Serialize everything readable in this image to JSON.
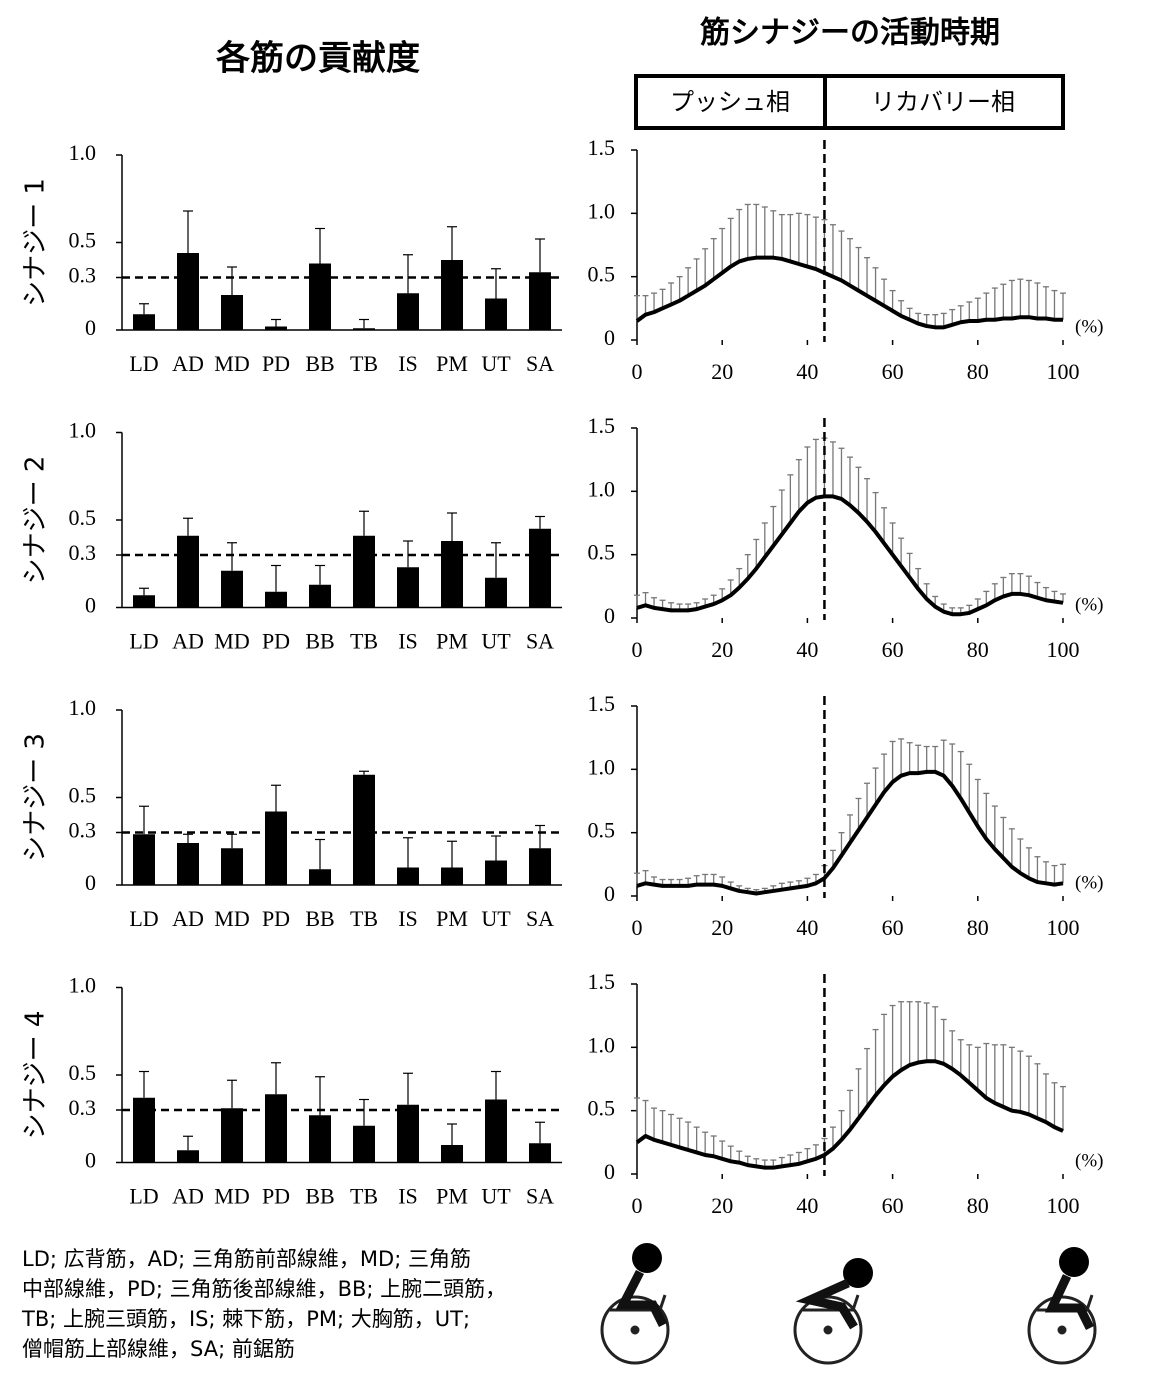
{
  "left_heading": "各筋の貢献度",
  "right_heading": "筋シナジーの活動時期",
  "phases": [
    "プッシュ相",
    "リカバリー相"
  ],
  "footnote": [
    "LD; 広背筋，AD; 三角筋前部線維，MD; 三角筋",
    "中部線維，PD; 三角筋後部線維，BB; 上腕二頭筋，",
    "TB; 上腕三頭筋，IS; 棘下筋，PM; 大胸筋，UT;",
    "僧帽筋上部線維，SA; 前鋸筋"
  ],
  "chart_data": [
    {
      "type": "bar",
      "ylabel": "シナジー 1",
      "categories": [
        "LD",
        "AD",
        "MD",
        "PD",
        "BB",
        "TB",
        "IS",
        "PM",
        "UT",
        "SA"
      ],
      "values": [
        0.09,
        0.44,
        0.2,
        0.02,
        0.38,
        0.01,
        0.21,
        0.4,
        0.18,
        0.33
      ],
      "errors": [
        0.06,
        0.24,
        0.16,
        0.04,
        0.2,
        0.05,
        0.22,
        0.19,
        0.17,
        0.19
      ],
      "color": "#000000",
      "ref_line": 0.3,
      "ylim": [
        0,
        1
      ],
      "yticks": [
        0,
        0.3,
        0.5,
        {
          "value": 1,
          "label": "1.0"
        }
      ]
    },
    {
      "type": "line",
      "x_unit": "(%)",
      "phase_boundary": 44,
      "color": "#000000",
      "error_color": "#777777",
      "x": [
        0,
        2,
        4,
        6,
        8,
        10,
        12,
        14,
        16,
        18,
        20,
        22,
        24,
        26,
        28,
        30,
        32,
        34,
        36,
        38,
        40,
        42,
        44,
        46,
        48,
        50,
        52,
        54,
        56,
        58,
        60,
        62,
        64,
        66,
        68,
        70,
        72,
        74,
        76,
        78,
        80,
        82,
        84,
        86,
        88,
        90,
        92,
        94,
        96,
        98,
        100
      ],
      "values": [
        0.15,
        0.2,
        0.22,
        0.25,
        0.28,
        0.31,
        0.35,
        0.39,
        0.43,
        0.48,
        0.53,
        0.58,
        0.62,
        0.64,
        0.65,
        0.65,
        0.65,
        0.64,
        0.62,
        0.6,
        0.58,
        0.56,
        0.53,
        0.5,
        0.47,
        0.43,
        0.39,
        0.35,
        0.31,
        0.27,
        0.23,
        0.19,
        0.16,
        0.13,
        0.11,
        0.1,
        0.1,
        0.12,
        0.14,
        0.15,
        0.15,
        0.16,
        0.16,
        0.17,
        0.17,
        0.18,
        0.18,
        0.17,
        0.17,
        0.16,
        0.16
      ],
      "errors": [
        0.2,
        0.15,
        0.15,
        0.15,
        0.17,
        0.19,
        0.22,
        0.25,
        0.29,
        0.32,
        0.35,
        0.38,
        0.41,
        0.43,
        0.42,
        0.4,
        0.37,
        0.35,
        0.37,
        0.4,
        0.41,
        0.41,
        0.42,
        0.41,
        0.39,
        0.37,
        0.34,
        0.3,
        0.26,
        0.21,
        0.16,
        0.12,
        0.09,
        0.08,
        0.09,
        0.1,
        0.11,
        0.12,
        0.13,
        0.15,
        0.18,
        0.21,
        0.25,
        0.27,
        0.3,
        0.3,
        0.29,
        0.28,
        0.25,
        0.23,
        0.21
      ],
      "xlim": [
        0,
        100
      ],
      "xticks": [
        0,
        20,
        40,
        60,
        80,
        100
      ],
      "ylim": [
        0,
        1.5
      ],
      "yticks": [
        0,
        0.5,
        {
          "value": 1,
          "label": "1.0"
        },
        1.5
      ]
    },
    {
      "type": "bar",
      "ylabel": "シナジー 2",
      "categories": [
        "LD",
        "AD",
        "MD",
        "PD",
        "BB",
        "TB",
        "IS",
        "PM",
        "UT",
        "SA"
      ],
      "values": [
        0.07,
        0.41,
        0.21,
        0.09,
        0.13,
        0.41,
        0.23,
        0.38,
        0.17,
        0.45
      ],
      "errors": [
        0.04,
        0.1,
        0.16,
        0.15,
        0.11,
        0.14,
        0.15,
        0.16,
        0.2,
        0.07
      ],
      "color": "#000000",
      "ref_line": 0.3,
      "ylim": [
        0,
        1
      ],
      "yticks": [
        0,
        0.3,
        0.5,
        {
          "value": 1,
          "label": "1.0"
        }
      ]
    },
    {
      "type": "line",
      "x_unit": "(%)",
      "phase_boundary": 44,
      "color": "#000000",
      "error_color": "#777777",
      "x": [
        0,
        2,
        4,
        6,
        8,
        10,
        12,
        14,
        16,
        18,
        20,
        22,
        24,
        26,
        28,
        30,
        32,
        34,
        36,
        38,
        40,
        42,
        44,
        46,
        48,
        50,
        52,
        54,
        56,
        58,
        60,
        62,
        64,
        66,
        68,
        70,
        72,
        74,
        76,
        78,
        80,
        82,
        84,
        86,
        88,
        90,
        92,
        94,
        96,
        98,
        100
      ],
      "values": [
        0.08,
        0.1,
        0.08,
        0.07,
        0.06,
        0.06,
        0.06,
        0.07,
        0.09,
        0.11,
        0.14,
        0.18,
        0.24,
        0.31,
        0.39,
        0.48,
        0.57,
        0.66,
        0.75,
        0.84,
        0.91,
        0.95,
        0.96,
        0.96,
        0.94,
        0.89,
        0.83,
        0.76,
        0.68,
        0.59,
        0.5,
        0.41,
        0.32,
        0.23,
        0.15,
        0.09,
        0.05,
        0.03,
        0.03,
        0.04,
        0.07,
        0.1,
        0.14,
        0.17,
        0.19,
        0.19,
        0.18,
        0.16,
        0.14,
        0.13,
        0.12
      ],
      "errors": [
        0.1,
        0.1,
        0.08,
        0.07,
        0.06,
        0.05,
        0.05,
        0.05,
        0.06,
        0.07,
        0.09,
        0.12,
        0.15,
        0.19,
        0.23,
        0.27,
        0.31,
        0.35,
        0.38,
        0.41,
        0.44,
        0.46,
        0.46,
        0.43,
        0.4,
        0.38,
        0.36,
        0.34,
        0.31,
        0.28,
        0.25,
        0.22,
        0.19,
        0.16,
        0.12,
        0.08,
        0.06,
        0.05,
        0.05,
        0.06,
        0.08,
        0.11,
        0.13,
        0.15,
        0.16,
        0.16,
        0.15,
        0.12,
        0.1,
        0.08,
        0.07
      ],
      "xlim": [
        0,
        100
      ],
      "xticks": [
        0,
        20,
        40,
        60,
        80,
        100
      ],
      "ylim": [
        0,
        1.5
      ],
      "yticks": [
        0,
        0.5,
        {
          "value": 1,
          "label": "1.0"
        },
        1.5
      ]
    },
    {
      "type": "bar",
      "ylabel": "シナジー 3",
      "categories": [
        "LD",
        "AD",
        "MD",
        "PD",
        "BB",
        "TB",
        "IS",
        "PM",
        "UT",
        "SA"
      ],
      "values": [
        0.29,
        0.24,
        0.21,
        0.42,
        0.09,
        0.63,
        0.1,
        0.1,
        0.14,
        0.21
      ],
      "errors": [
        0.16,
        0.05,
        0.08,
        0.15,
        0.17,
        0.02,
        0.17,
        0.15,
        0.14,
        0.13
      ],
      "color": "#000000",
      "ref_line": 0.3,
      "ylim": [
        0,
        1
      ],
      "yticks": [
        0,
        0.3,
        0.5,
        {
          "value": 1,
          "label": "1.0"
        }
      ]
    },
    {
      "type": "line",
      "x_unit": "(%)",
      "phase_boundary": 44,
      "color": "#000000",
      "error_color": "#777777",
      "x": [
        0,
        2,
        4,
        6,
        8,
        10,
        12,
        14,
        16,
        18,
        20,
        22,
        24,
        26,
        28,
        30,
        32,
        34,
        36,
        38,
        40,
        42,
        44,
        46,
        48,
        50,
        52,
        54,
        56,
        58,
        60,
        62,
        64,
        66,
        68,
        70,
        72,
        74,
        76,
        78,
        80,
        82,
        84,
        86,
        88,
        90,
        92,
        94,
        96,
        98,
        100
      ],
      "values": [
        0.08,
        0.1,
        0.09,
        0.08,
        0.08,
        0.08,
        0.08,
        0.09,
        0.09,
        0.09,
        0.08,
        0.06,
        0.04,
        0.03,
        0.02,
        0.03,
        0.04,
        0.05,
        0.06,
        0.07,
        0.08,
        0.1,
        0.14,
        0.22,
        0.32,
        0.42,
        0.52,
        0.62,
        0.72,
        0.82,
        0.9,
        0.95,
        0.97,
        0.97,
        0.98,
        0.98,
        0.95,
        0.87,
        0.77,
        0.66,
        0.55,
        0.45,
        0.37,
        0.3,
        0.23,
        0.18,
        0.14,
        0.11,
        0.1,
        0.09,
        0.1
      ],
      "errors": [
        0.1,
        0.1,
        0.06,
        0.05,
        0.05,
        0.05,
        0.06,
        0.07,
        0.08,
        0.08,
        0.07,
        0.05,
        0.04,
        0.03,
        0.03,
        0.03,
        0.04,
        0.05,
        0.05,
        0.05,
        0.06,
        0.07,
        0.1,
        0.14,
        0.18,
        0.22,
        0.25,
        0.27,
        0.29,
        0.3,
        0.32,
        0.29,
        0.24,
        0.22,
        0.2,
        0.2,
        0.28,
        0.33,
        0.37,
        0.38,
        0.37,
        0.36,
        0.34,
        0.32,
        0.3,
        0.27,
        0.24,
        0.2,
        0.17,
        0.15,
        0.15
      ],
      "xlim": [
        0,
        100
      ],
      "xticks": [
        0,
        20,
        40,
        60,
        80,
        100
      ],
      "ylim": [
        0,
        1.5
      ],
      "yticks": [
        0,
        0.5,
        {
          "value": 1,
          "label": "1.0"
        },
        1.5
      ]
    },
    {
      "type": "bar",
      "ylabel": "シナジー 4",
      "categories": [
        "LD",
        "AD",
        "MD",
        "PD",
        "BB",
        "TB",
        "IS",
        "PM",
        "UT",
        "SA"
      ],
      "values": [
        0.37,
        0.07,
        0.31,
        0.39,
        0.27,
        0.21,
        0.33,
        0.1,
        0.36,
        0.11
      ],
      "errors": [
        0.15,
        0.08,
        0.16,
        0.18,
        0.22,
        0.15,
        0.18,
        0.12,
        0.16,
        0.12
      ],
      "color": "#000000",
      "ref_line": 0.3,
      "ylim": [
        0,
        1
      ],
      "yticks": [
        0,
        0.3,
        0.5,
        {
          "value": 1,
          "label": "1.0"
        }
      ]
    },
    {
      "type": "line",
      "x_unit": "(%)",
      "phase_boundary": 44,
      "color": "#000000",
      "error_color": "#777777",
      "x": [
        0,
        2,
        4,
        6,
        8,
        10,
        12,
        14,
        16,
        18,
        20,
        22,
        24,
        26,
        28,
        30,
        32,
        34,
        36,
        38,
        40,
        42,
        44,
        46,
        48,
        50,
        52,
        54,
        56,
        58,
        60,
        62,
        64,
        66,
        68,
        70,
        72,
        74,
        76,
        78,
        80,
        82,
        84,
        86,
        88,
        90,
        92,
        94,
        96,
        98,
        100
      ],
      "values": [
        0.25,
        0.3,
        0.27,
        0.25,
        0.23,
        0.21,
        0.19,
        0.17,
        0.15,
        0.14,
        0.12,
        0.1,
        0.09,
        0.07,
        0.06,
        0.05,
        0.05,
        0.06,
        0.07,
        0.08,
        0.1,
        0.12,
        0.15,
        0.2,
        0.27,
        0.35,
        0.44,
        0.53,
        0.62,
        0.7,
        0.77,
        0.82,
        0.86,
        0.88,
        0.89,
        0.89,
        0.87,
        0.83,
        0.78,
        0.72,
        0.66,
        0.6,
        0.56,
        0.53,
        0.5,
        0.49,
        0.47,
        0.44,
        0.41,
        0.37,
        0.34
      ],
      "errors": [
        0.35,
        0.28,
        0.25,
        0.25,
        0.24,
        0.23,
        0.22,
        0.2,
        0.18,
        0.16,
        0.14,
        0.12,
        0.09,
        0.07,
        0.06,
        0.06,
        0.06,
        0.07,
        0.08,
        0.09,
        0.1,
        0.11,
        0.13,
        0.17,
        0.23,
        0.31,
        0.39,
        0.46,
        0.52,
        0.56,
        0.56,
        0.54,
        0.5,
        0.48,
        0.46,
        0.43,
        0.35,
        0.3,
        0.28,
        0.3,
        0.34,
        0.43,
        0.46,
        0.49,
        0.5,
        0.48,
        0.46,
        0.43,
        0.38,
        0.35,
        0.35
      ],
      "xlim": [
        0,
        100
      ],
      "xticks": [
        0,
        20,
        40,
        60,
        80,
        100
      ],
      "ylim": [
        0,
        1.5
      ],
      "yticks": [
        0,
        0.5,
        {
          "value": 1,
          "label": "1.0"
        },
        1.5
      ]
    }
  ]
}
